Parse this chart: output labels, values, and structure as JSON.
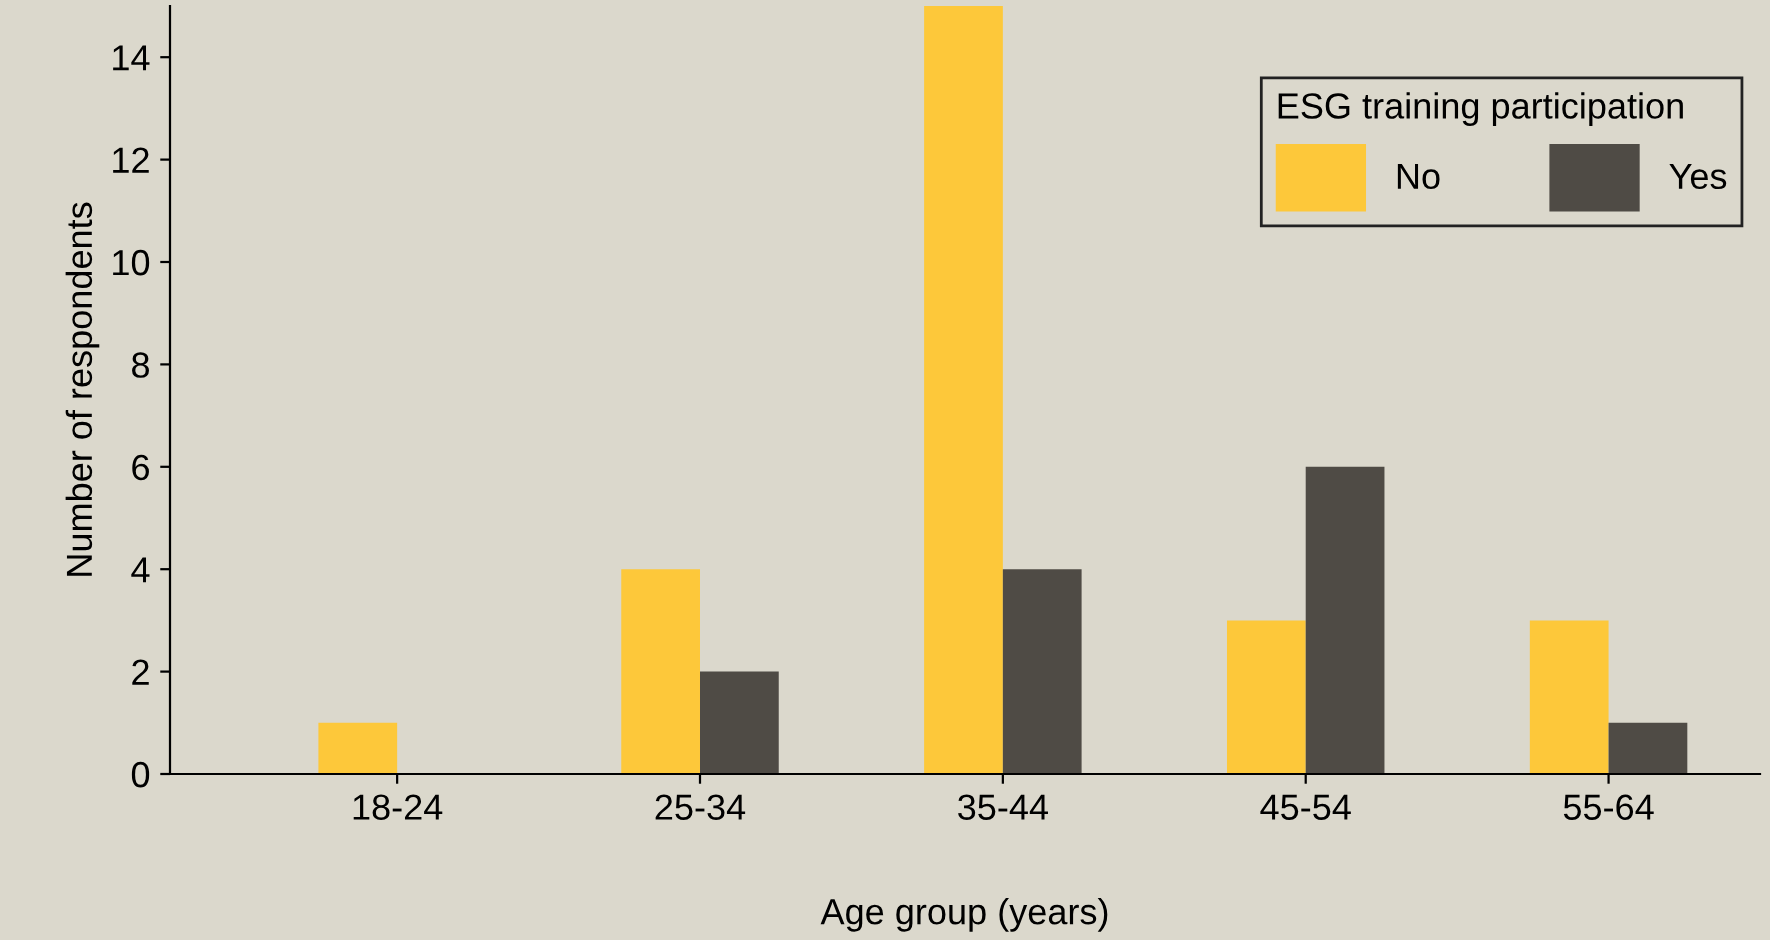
{
  "chart_data": {
    "type": "bar",
    "xlabel": "Age group (years)",
    "ylabel": "Number of respondents",
    "legend_title": "ESG training participation",
    "categories": [
      "18-24",
      "25-34",
      "35-44",
      "45-54",
      "55-64"
    ],
    "series": [
      {
        "name": "No",
        "color": "#fdc83a",
        "values": [
          1,
          4,
          15,
          3,
          3
        ]
      },
      {
        "name": "Yes",
        "color": "#4f4b45",
        "values": [
          0,
          2,
          4,
          6,
          1
        ]
      }
    ],
    "ylim": [
      0,
      15
    ],
    "yticks": [
      0,
      2,
      4,
      6,
      8,
      10,
      12,
      14
    ],
    "grid": false,
    "legend": "top right"
  }
}
